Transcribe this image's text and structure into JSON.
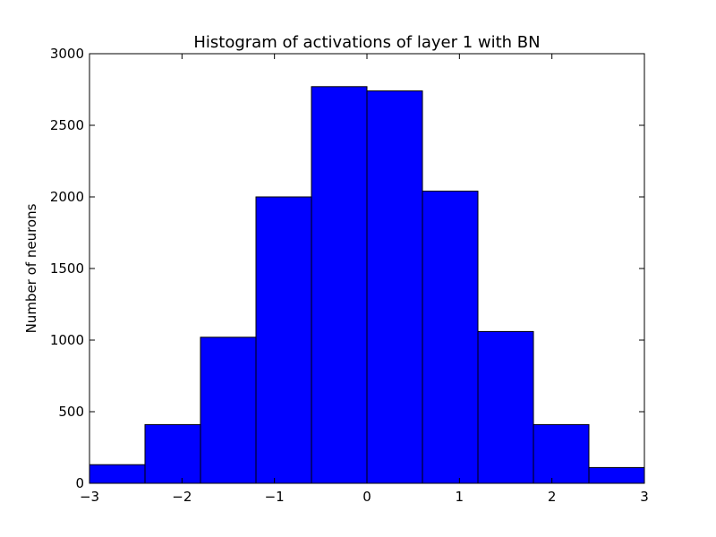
{
  "chart_data": {
    "type": "bar",
    "title": "Histogram of activations of layer 1  with BN",
    "xlabel": "",
    "ylabel": "Number of neurons",
    "xlim": [
      -3,
      3
    ],
    "ylim": [
      0,
      3000
    ],
    "bin_edges": [
      -3.0,
      -2.4,
      -1.8,
      -1.2,
      -0.6,
      0.0,
      0.6,
      1.2,
      1.8,
      2.4,
      3.0
    ],
    "values": [
      130,
      410,
      1020,
      2000,
      2770,
      2740,
      2040,
      1060,
      410,
      110
    ],
    "x_ticks": [
      -3,
      -2,
      -1,
      0,
      1,
      2,
      3
    ],
    "x_tick_labels": [
      "−3",
      "−2",
      "−1",
      "0",
      "1",
      "2",
      "3"
    ],
    "y_ticks": [
      0,
      500,
      1000,
      1500,
      2000,
      2500,
      3000
    ],
    "y_tick_labels": [
      "0",
      "500",
      "1000",
      "1500",
      "2000",
      "2500",
      "3000"
    ],
    "bar_color": "#0000ff",
    "edge_color": "#000000",
    "grid": false
  }
}
